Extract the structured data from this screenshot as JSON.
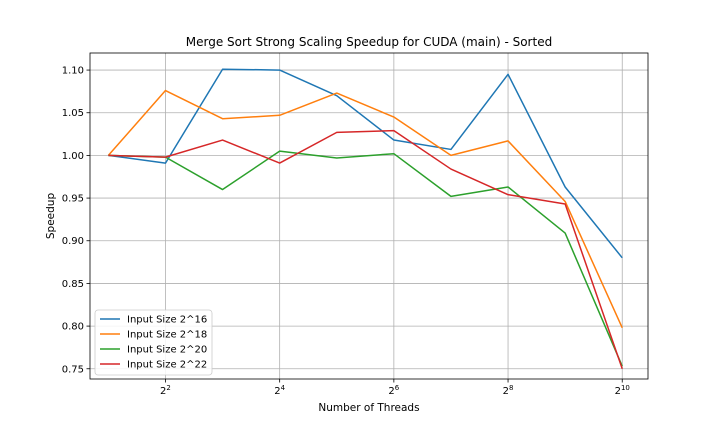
{
  "chart_data": {
    "type": "line",
    "title": "Merge Sort Strong Scaling Speedup for CUDA (main) - Sorted",
    "xlabel": "Number of Threads",
    "ylabel": "Speedup",
    "x_scale": "log2",
    "x": [
      2,
      4,
      8,
      16,
      32,
      64,
      128,
      256,
      512,
      1024
    ],
    "xlim": [
      1.6,
      1400
    ],
    "ylim": [
      0.738,
      1.12
    ],
    "x_ticks": [
      {
        "value": 4,
        "base": "2",
        "exp": "2"
      },
      {
        "value": 16,
        "base": "2",
        "exp": "4"
      },
      {
        "value": 64,
        "base": "2",
        "exp": "6"
      },
      {
        "value": 256,
        "base": "2",
        "exp": "8"
      },
      {
        "value": 1024,
        "base": "2",
        "exp": "10"
      }
    ],
    "y_ticks": [
      "0.75",
      "0.80",
      "0.85",
      "0.90",
      "0.95",
      "1.00",
      "1.05",
      "1.10"
    ],
    "grid": true,
    "legend_position": "lower-left",
    "series": [
      {
        "name": "Input Size 2^16",
        "color": "#1f77b4",
        "values": [
          1.0,
          0.991,
          1.101,
          1.1,
          1.07,
          1.018,
          1.007,
          1.095,
          0.963,
          0.88
        ]
      },
      {
        "name": "Input Size 2^18",
        "color": "#ff7f0e",
        "values": [
          1.0,
          1.076,
          1.043,
          1.047,
          1.073,
          1.045,
          1.0,
          1.017,
          0.946,
          0.798
        ]
      },
      {
        "name": "Input Size 2^20",
        "color": "#2ca02c",
        "values": [
          1.0,
          0.998,
          0.96,
          1.005,
          0.997,
          1.002,
          0.952,
          0.963,
          0.909,
          0.753
        ]
      },
      {
        "name": "Input Size 2^22",
        "color": "#d62728",
        "values": [
          1.0,
          0.998,
          1.018,
          0.991,
          1.027,
          1.029,
          0.984,
          0.954,
          0.943,
          0.75
        ]
      }
    ]
  }
}
